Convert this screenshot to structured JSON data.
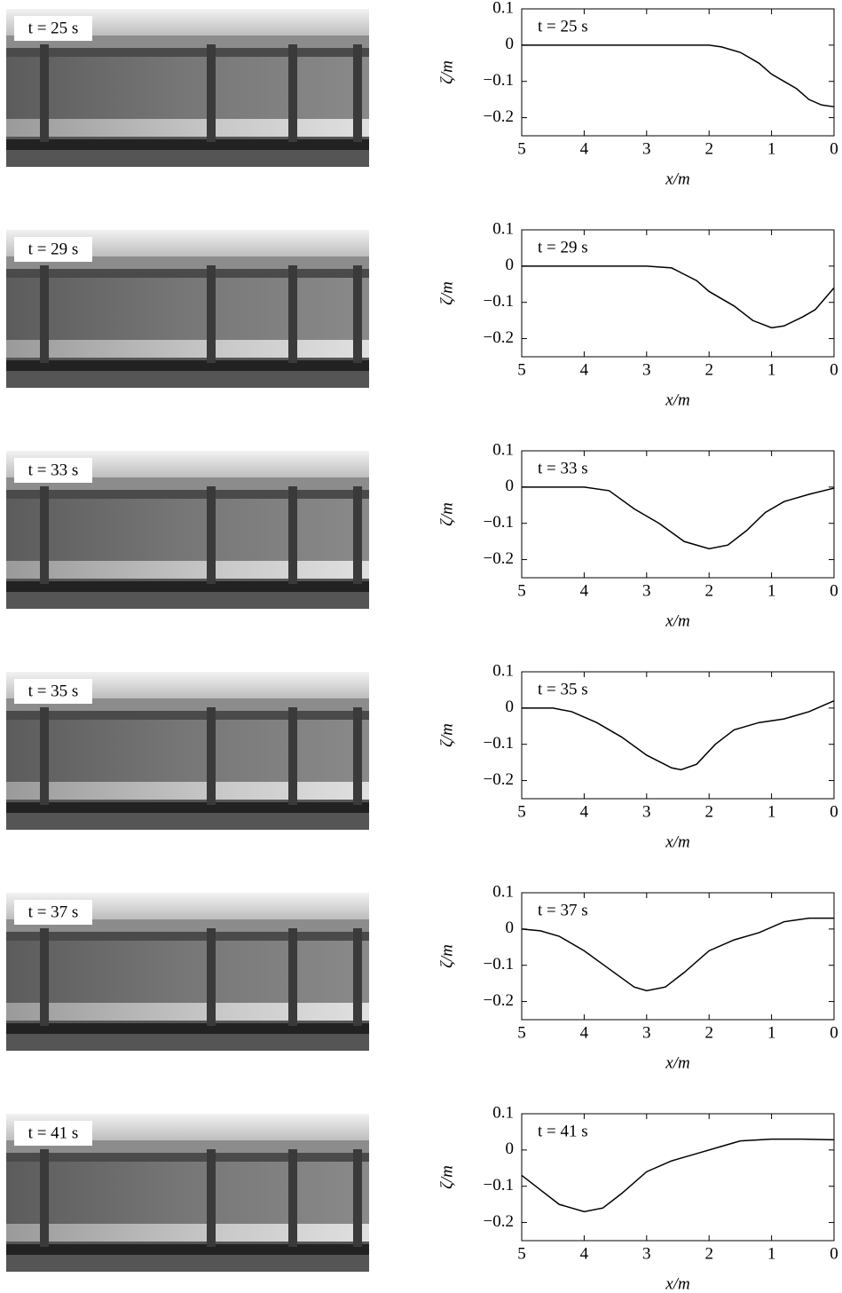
{
  "photos": [
    {
      "label": "t = 25 s"
    },
    {
      "label": "t = 29 s"
    },
    {
      "label": "t = 33 s"
    },
    {
      "label": "t = 35 s"
    },
    {
      "label": "t = 37 s"
    },
    {
      "label": "t = 41 s"
    }
  ],
  "chart_data": [
    {
      "type": "line",
      "annotation": "t = 25 s",
      "x_label": "x/m",
      "y_label": "ζ/m",
      "color": "#000000",
      "xlim": [
        5,
        0
      ],
      "ylim": [
        -0.25,
        0.1
      ],
      "xticks": [
        5,
        4,
        3,
        2,
        1,
        0
      ],
      "yticks": [
        0.1,
        0,
        {
          "value": -0.1,
          "label": "−0.1"
        },
        {
          "value": -0.2,
          "label": "−0.2"
        }
      ],
      "x": [
        5,
        4,
        3,
        2,
        1.8,
        1.5,
        1.2,
        1.0,
        0.8,
        0.6,
        0.4,
        0.2,
        0
      ],
      "values": [
        0,
        0,
        0,
        0,
        -0.005,
        -0.02,
        -0.05,
        -0.08,
        -0.1,
        -0.12,
        -0.15,
        -0.165,
        -0.17
      ]
    },
    {
      "type": "line",
      "annotation": "t = 29 s",
      "x_label": "x/m",
      "y_label": "ζ/m",
      "color": "#000000",
      "xlim": [
        5,
        0
      ],
      "ylim": [
        -0.25,
        0.1
      ],
      "xticks": [
        5,
        4,
        3,
        2,
        1,
        0
      ],
      "yticks": [
        0.1,
        0,
        {
          "value": -0.1,
          "label": "−0.1"
        },
        {
          "value": -0.2,
          "label": "−0.2"
        }
      ],
      "x": [
        5,
        4,
        3,
        2.6,
        2.2,
        2.0,
        1.6,
        1.3,
        1.0,
        0.8,
        0.5,
        0.3,
        0
      ],
      "values": [
        0,
        0,
        0,
        -0.005,
        -0.04,
        -0.07,
        -0.11,
        -0.15,
        -0.17,
        -0.165,
        -0.14,
        -0.12,
        -0.06
      ]
    },
    {
      "type": "line",
      "annotation": "t = 33 s",
      "x_label": "x/m",
      "y_label": "ζ/m",
      "color": "#000000",
      "xlim": [
        5,
        0
      ],
      "ylim": [
        -0.25,
        0.1
      ],
      "xticks": [
        5,
        4,
        3,
        2,
        1,
        0
      ],
      "yticks": [
        0.1,
        0,
        {
          "value": -0.1,
          "label": "−0.1"
        },
        {
          "value": -0.2,
          "label": "−0.2"
        }
      ],
      "x": [
        5,
        4,
        3.6,
        3.2,
        2.8,
        2.4,
        2.0,
        1.7,
        1.4,
        1.1,
        0.8,
        0.4,
        0
      ],
      "values": [
        0,
        0,
        -0.01,
        -0.06,
        -0.1,
        -0.15,
        -0.17,
        -0.16,
        -0.12,
        -0.07,
        -0.04,
        -0.02,
        -0.003
      ]
    },
    {
      "type": "line",
      "annotation": "t = 35 s",
      "x_label": "x/m",
      "y_label": "ζ/m",
      "color": "#000000",
      "xlim": [
        5,
        0
      ],
      "ylim": [
        -0.25,
        0.1
      ],
      "xticks": [
        5,
        4,
        3,
        2,
        1,
        0
      ],
      "yticks": [
        0.1,
        0,
        {
          "value": -0.1,
          "label": "−0.1"
        },
        {
          "value": -0.2,
          "label": "−0.2"
        }
      ],
      "x": [
        5,
        4.5,
        4.2,
        3.8,
        3.4,
        3.0,
        2.6,
        2.45,
        2.2,
        1.9,
        1.6,
        1.2,
        0.8,
        0.4,
        0
      ],
      "values": [
        0,
        0,
        -0.01,
        -0.04,
        -0.08,
        -0.13,
        -0.165,
        -0.17,
        -0.155,
        -0.1,
        -0.06,
        -0.04,
        -0.03,
        -0.01,
        0.02
      ]
    },
    {
      "type": "line",
      "annotation": "t = 37 s",
      "x_label": "x/m",
      "y_label": "ζ/m",
      "color": "#000000",
      "xlim": [
        5,
        0
      ],
      "ylim": [
        -0.25,
        0.1
      ],
      "xticks": [
        5,
        4,
        3,
        2,
        1,
        0
      ],
      "yticks": [
        0.1,
        0,
        {
          "value": -0.1,
          "label": "−0.1"
        },
        {
          "value": -0.2,
          "label": "−0.2"
        }
      ],
      "x": [
        5,
        4.7,
        4.4,
        4.0,
        3.6,
        3.2,
        3.0,
        2.7,
        2.4,
        2.0,
        1.6,
        1.2,
        0.8,
        0.4,
        0
      ],
      "values": [
        0,
        -0.005,
        -0.02,
        -0.06,
        -0.11,
        -0.16,
        -0.17,
        -0.16,
        -0.12,
        -0.06,
        -0.03,
        -0.01,
        0.02,
        0.03,
        0.03
      ]
    },
    {
      "type": "line",
      "annotation": "t = 41 s",
      "x_label": "x/m",
      "y_label": "ζ/m",
      "color": "#000000",
      "xlim": [
        5,
        0
      ],
      "ylim": [
        -0.25,
        0.1
      ],
      "xticks": [
        5,
        4,
        3,
        2,
        1,
        0
      ],
      "yticks": [
        0.1,
        0,
        {
          "value": -0.1,
          "label": "−0.1"
        },
        {
          "value": -0.2,
          "label": "−0.2"
        }
      ],
      "x": [
        5,
        4.7,
        4.4,
        4.0,
        3.7,
        3.4,
        3.0,
        2.6,
        2.2,
        1.8,
        1.5,
        1.0,
        0.5,
        0
      ],
      "values": [
        -0.07,
        -0.11,
        -0.15,
        -0.17,
        -0.16,
        -0.12,
        -0.06,
        -0.03,
        -0.01,
        0.01,
        0.025,
        0.03,
        0.03,
        0.028
      ]
    }
  ]
}
